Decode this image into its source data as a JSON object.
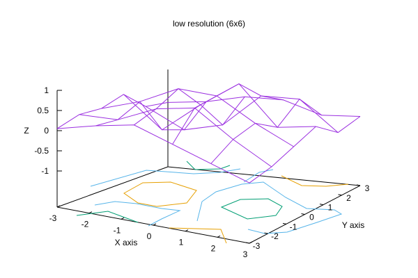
{
  "chart_data": {
    "type": "surface-3d",
    "title": "low resolution (6x6)",
    "xlabel": "X axis",
    "ylabel": "Y axis",
    "zlabel": "Z",
    "x_ticks": [
      "-3",
      "-2",
      "-1",
      "0",
      "1",
      "2",
      "3"
    ],
    "y_ticks": [
      "-3",
      "-2",
      "-1",
      "0",
      "1",
      "2",
      "3"
    ],
    "z_ticks": [
      "1",
      "0.5",
      "0",
      "-0.5",
      "-1"
    ],
    "surface_color": "#9a2ee0",
    "contour_colors": [
      "#e69f00",
      "#56b4e9",
      "#009e73"
    ],
    "grid_x": [
      -3,
      -1.8,
      -0.6,
      0.6,
      1.8,
      3
    ],
    "grid_y": [
      -3,
      -1.8,
      -0.6,
      0.6,
      1.8,
      3
    ],
    "z": [
      [
        0.05,
        0.2,
        0.15,
        0.3,
        -0.2,
        -0.3
      ],
      [
        0.3,
        0.25,
        0.5,
        -0.4,
        -0.6,
        -0.1
      ],
      [
        0.5,
        0.7,
        1.0,
        0.4,
        -0.3,
        0.2
      ],
      [
        0.2,
        0.9,
        1.0,
        1.1,
        0.6,
        0.3
      ],
      [
        -0.1,
        0.3,
        0.5,
        0.2,
        0.7,
        0.1
      ],
      [
        -0.4,
        -0.2,
        0.1,
        0.4,
        0.05,
        0.25
      ]
    ]
  }
}
